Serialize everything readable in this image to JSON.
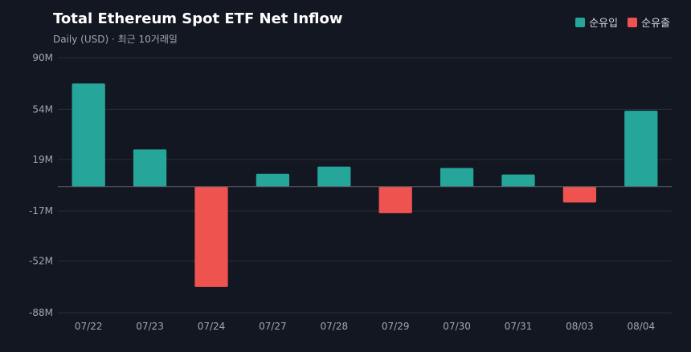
{
  "chart_data": {
    "type": "bar",
    "title": "Total Ethereum Spot ETF Net Inflow",
    "subtitle": "Daily (USD) · 최근 10거래일",
    "categories": [
      "07/22",
      "07/23",
      "07/24",
      "07/27",
      "07/28",
      "07/29",
      "07/30",
      "07/31",
      "08/03",
      "08/04"
    ],
    "values": [
      72,
      26,
      -70,
      9,
      14,
      -18.5,
      13,
      8.5,
      -11,
      53
    ],
    "y_ticks": [
      90,
      54,
      19,
      -17,
      -52,
      -88
    ],
    "y_tick_labels": [
      "90M",
      "54M",
      "19M",
      "-17M",
      "-52M",
      "-88M"
    ],
    "ylim": [
      -88,
      90
    ],
    "unit": "M USD",
    "legend": [
      {
        "label": "순유입",
        "color": "#26a69a"
      },
      {
        "label": "순유출",
        "color": "#ef5350"
      }
    ],
    "legend_position": "top-right",
    "grid": true,
    "colors": {
      "positive": "#26a69a",
      "negative": "#ef5350",
      "grid": "#2a2e39",
      "zero_line": "#5d606b"
    }
  }
}
